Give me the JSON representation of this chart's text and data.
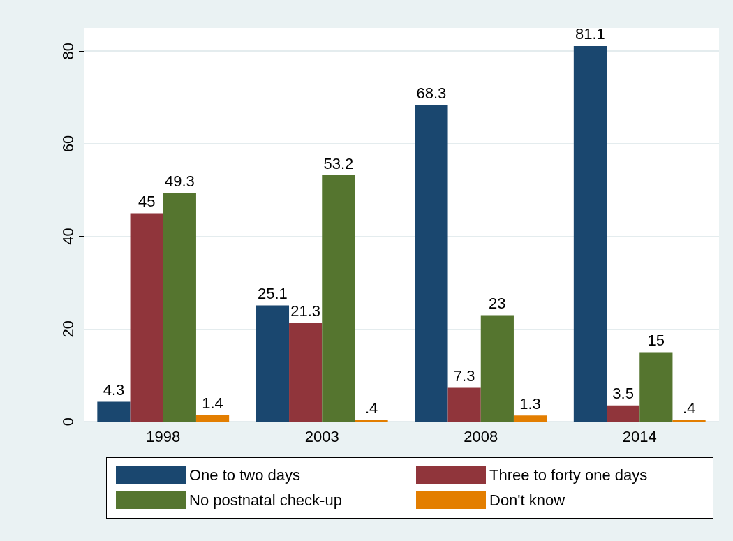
{
  "chart_data": {
    "type": "bar",
    "categories": [
      "1998",
      "2003",
      "2008",
      "2014"
    ],
    "series": [
      {
        "name": "One to two days",
        "color": "#1a476f",
        "values": [
          4.3,
          25.1,
          68.3,
          81.1
        ],
        "value_labels": [
          "4.3",
          "25.1",
          "68.3",
          "81.1"
        ]
      },
      {
        "name": "Three to forty one days",
        "color": "#90353b",
        "values": [
          45,
          21.3,
          7.3,
          3.5
        ],
        "value_labels": [
          "45",
          "21.3",
          "7.3",
          "3.5"
        ]
      },
      {
        "name": "No postnatal check-up",
        "color": "#55752f",
        "values": [
          49.3,
          53.2,
          23,
          15
        ],
        "value_labels": [
          "49.3",
          "53.2",
          "23",
          "15"
        ]
      },
      {
        "name": "Don't know",
        "color": "#e37e00",
        "values": [
          1.4,
          0.4,
          1.3,
          0.4
        ],
        "value_labels": [
          "1.4",
          ".4",
          "1.3",
          ".4"
        ]
      }
    ],
    "ylim": [
      0,
      85
    ],
    "yticks": [
      0,
      20,
      40,
      60,
      80
    ],
    "grid": "y",
    "legend": "bottom"
  }
}
